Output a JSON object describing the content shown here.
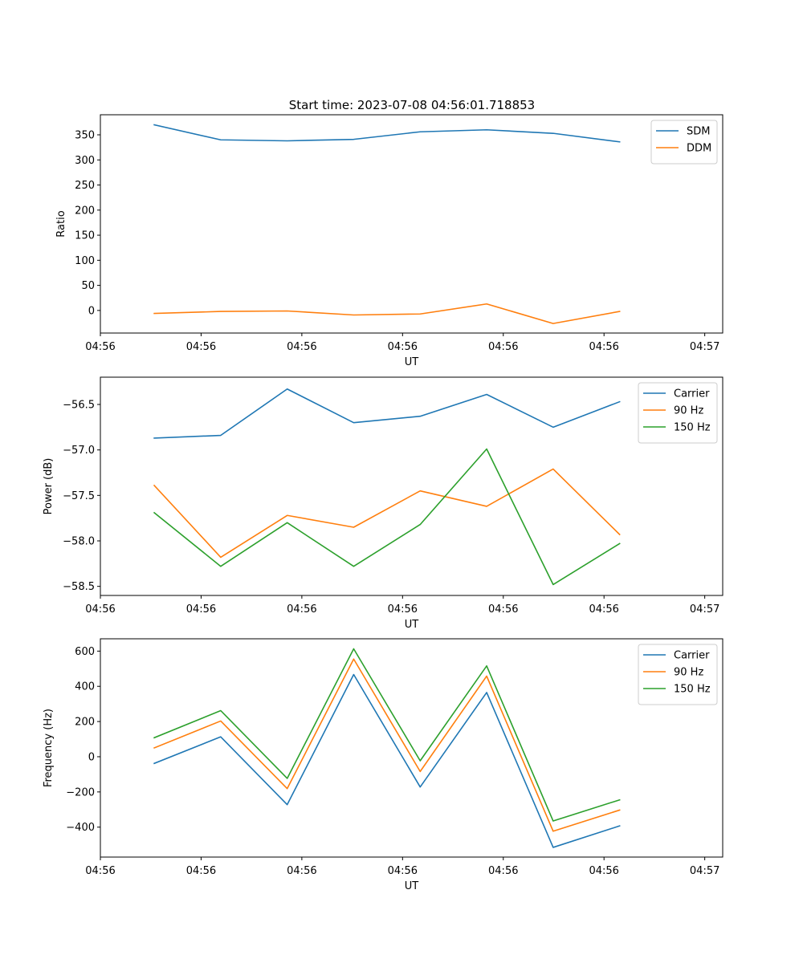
{
  "figure": {
    "title": "Start time: 2023-07-08 04:56:01.718853"
  },
  "colors": {
    "blue": "#1f77b4",
    "orange": "#ff7f0e",
    "green": "#2ca02c"
  },
  "chart_data": [
    {
      "type": "line",
      "name": "ratio-chart",
      "title": "Start time: 2023-07-08 04:56:01.718853",
      "xlabel": "UT",
      "ylabel": "Ratio",
      "x": [
        1,
        2,
        3,
        4,
        5,
        6,
        7,
        8
      ],
      "xlim": [
        0.19,
        9.55
      ],
      "xticks": [
        0.19,
        1.705,
        3.22,
        4.735,
        6.25,
        7.765,
        9.28
      ],
      "xtick_labels": [
        "04:56",
        "04:56",
        "04:56",
        "04:56",
        "04:56",
        "04:56",
        "04:57"
      ],
      "ylim": [
        -45,
        390
      ],
      "yticks": [
        0,
        50,
        100,
        150,
        200,
        250,
        300,
        350
      ],
      "ytick_labels": [
        "0",
        "50",
        "100",
        "150",
        "200",
        "250",
        "300",
        "350"
      ],
      "legend_position": "top-right",
      "series": [
        {
          "name": "SDM",
          "color": "#1f77b4",
          "values": [
            370,
            340,
            338,
            341,
            356,
            360,
            353,
            336
          ]
        },
        {
          "name": "DDM",
          "color": "#ff7f0e",
          "values": [
            -6,
            -2,
            -1,
            -9,
            -7,
            13,
            -26,
            -2
          ]
        }
      ]
    },
    {
      "type": "line",
      "name": "power-chart",
      "title": "",
      "xlabel": "UT",
      "ylabel": "Power (dB)",
      "x": [
        1,
        2,
        3,
        4,
        5,
        6,
        7,
        8
      ],
      "xlim": [
        0.19,
        9.55
      ],
      "xticks": [
        0.19,
        1.705,
        3.22,
        4.735,
        6.25,
        7.765,
        9.28
      ],
      "xtick_labels": [
        "04:56",
        "04:56",
        "04:56",
        "04:56",
        "04:56",
        "04:56",
        "04:57"
      ],
      "ylim": [
        -58.6,
        -56.2
      ],
      "yticks": [
        -58.5,
        -58.0,
        -57.5,
        -57.0,
        -56.5
      ],
      "ytick_labels": [
        "−58.5",
        "−58.0",
        "−57.5",
        "−57.0",
        "−56.5"
      ],
      "legend_position": "top-right",
      "series": [
        {
          "name": "Carrier",
          "color": "#1f77b4",
          "values": [
            -56.87,
            -56.84,
            -56.33,
            -56.7,
            -56.63,
            -56.39,
            -56.75,
            -56.47
          ]
        },
        {
          "name": "90 Hz",
          "color": "#ff7f0e",
          "values": [
            -57.39,
            -58.18,
            -57.72,
            -57.85,
            -57.45,
            -57.62,
            -57.21,
            -57.93
          ]
        },
        {
          "name": "150 Hz",
          "color": "#2ca02c",
          "values": [
            -57.69,
            -58.28,
            -57.8,
            -58.28,
            -57.82,
            -56.99,
            -58.48,
            -58.03
          ]
        }
      ]
    },
    {
      "type": "line",
      "name": "frequency-chart",
      "title": "",
      "xlabel": "UT",
      "ylabel": "Frequency (Hz)",
      "x": [
        1,
        2,
        3,
        4,
        5,
        6,
        7,
        8
      ],
      "xlim": [
        0.19,
        9.55
      ],
      "xticks": [
        0.19,
        1.705,
        3.22,
        4.735,
        6.25,
        7.765,
        9.28
      ],
      "xtick_labels": [
        "04:56",
        "04:56",
        "04:56",
        "04:56",
        "04:56",
        "04:56",
        "04:57"
      ],
      "ylim": [
        -570,
        670
      ],
      "yticks": [
        -400,
        -200,
        0,
        200,
        400,
        600
      ],
      "ytick_labels": [
        "−400",
        "−200",
        "0",
        "200",
        "400",
        "600"
      ],
      "legend_position": "top-right",
      "series": [
        {
          "name": "Carrier",
          "color": "#1f77b4",
          "values": [
            -38,
            113,
            -272,
            467,
            -172,
            365,
            -515,
            -393
          ]
        },
        {
          "name": "90 Hz",
          "color": "#ff7f0e",
          "values": [
            50,
            203,
            -181,
            555,
            -84,
            458,
            -423,
            -303
          ]
        },
        {
          "name": "150 Hz",
          "color": "#2ca02c",
          "values": [
            108,
            262,
            -123,
            613,
            -23,
            516,
            -365,
            -245
          ]
        }
      ]
    }
  ]
}
